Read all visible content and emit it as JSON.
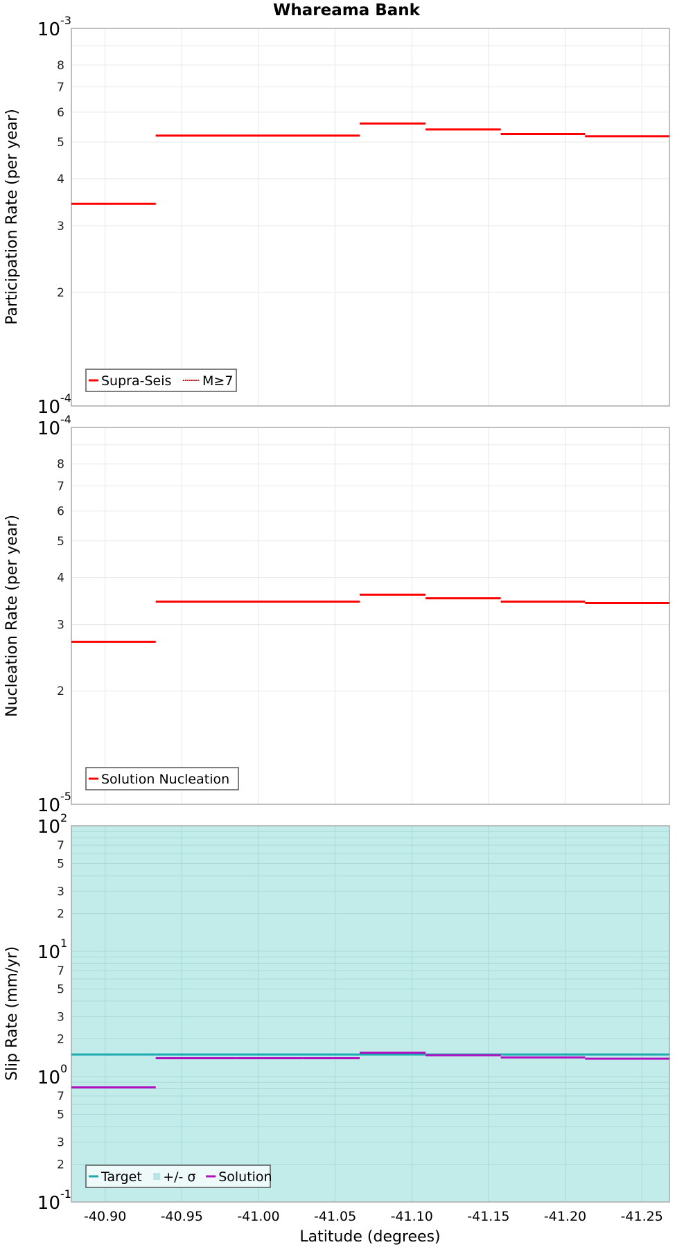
{
  "title": "Whareama Bank",
  "xlabel": "Latitude (degrees)",
  "x_ticks": [
    "-40.90",
    "-40.95",
    "-41.00",
    "-41.05",
    "-41.10",
    "-41.15",
    "-41.20",
    "-41.25"
  ],
  "panels": [
    {
      "ylabel": "Participation Rate (per year)",
      "y_top_label": "10",
      "y_top_exp": "-3",
      "y_bottom_label": "10",
      "y_bottom_exp": "-4",
      "minor_labels": [
        "8",
        "7",
        "6",
        "5",
        "4",
        "3",
        "2"
      ],
      "legend": [
        {
          "label": "Supra-Seis",
          "style": "solid"
        },
        {
          "label": "M≥7",
          "style": "dotted"
        }
      ]
    },
    {
      "ylabel": "Nucleation Rate (per year)",
      "y_top_label": "10",
      "y_top_exp": "-4",
      "y_bottom_label": "10",
      "y_bottom_exp": "-5",
      "minor_labels": [
        "8",
        "7",
        "6",
        "5",
        "4",
        "3",
        "2"
      ],
      "legend": [
        {
          "label": "Solution Nucleation",
          "style": "solid"
        }
      ]
    },
    {
      "ylabel": "Slip Rate (mm/yr)",
      "decade_labels": [
        {
          "base": "10",
          "exp": "2"
        },
        {
          "base": "10",
          "exp": "1"
        },
        {
          "base": "10",
          "exp": "0"
        },
        {
          "base": "10",
          "exp": "-1"
        }
      ],
      "minor_labels": [
        "7",
        "5",
        "3",
        "2"
      ],
      "legend": [
        {
          "label": "Target",
          "style": "solid"
        },
        {
          "label": "+/- σ",
          "style": "box"
        },
        {
          "label": "Solution",
          "style": "solid"
        }
      ]
    }
  ],
  "colors": {
    "red": "#ff0000",
    "target": "#1aabb0",
    "sigma_fill": "#c2ecea",
    "solution": "#b010c0",
    "grid": "#e8e8e8",
    "axis": "#aaaaaa"
  },
  "chart_data": [
    {
      "type": "line",
      "title": "Whareama Bank",
      "xlabel": "Latitude (degrees)",
      "ylabel": "Participation Rate (per year)",
      "yscale": "log",
      "ylim": [
        0.0001,
        0.001
      ],
      "xlim": [
        -40.878,
        -41.268
      ],
      "grid": true,
      "legend_position": "lower left",
      "segments_lat": [
        [
          -40.878,
          -40.933
        ],
        [
          -40.933,
          -40.985
        ],
        [
          -40.985,
          -41.029
        ],
        [
          -41.029,
          -41.066
        ],
        [
          -41.066,
          -41.109
        ],
        [
          -41.109,
          -41.158
        ],
        [
          -41.158,
          -41.213
        ],
        [
          -41.213,
          -41.268
        ]
      ],
      "series": [
        {
          "name": "Supra-Seis",
          "values": [
            0.000343,
            0.00052,
            0.00052,
            0.00052,
            0.00056,
            0.00054,
            0.000525,
            0.000518
          ]
        },
        {
          "name": "M≥7",
          "values": [
            0.000343,
            0.00052,
            0.00052,
            0.00052,
            0.00056,
            0.00054,
            0.000525,
            0.000518
          ]
        }
      ]
    },
    {
      "type": "line",
      "xlabel": "Latitude (degrees)",
      "ylabel": "Nucleation Rate (per year)",
      "yscale": "log",
      "ylim": [
        1e-05,
        0.0001
      ],
      "xlim": [
        -40.878,
        -41.268
      ],
      "grid": true,
      "legend_position": "lower left",
      "segments_lat": [
        [
          -40.878,
          -40.933
        ],
        [
          -40.933,
          -40.985
        ],
        [
          -40.985,
          -41.029
        ],
        [
          -41.029,
          -41.066
        ],
        [
          -41.066,
          -41.109
        ],
        [
          -41.109,
          -41.158
        ],
        [
          -41.158,
          -41.213
        ],
        [
          -41.213,
          -41.268
        ]
      ],
      "series": [
        {
          "name": "Solution Nucleation",
          "values": [
            2.7e-05,
            3.45e-05,
            3.45e-05,
            3.45e-05,
            3.6e-05,
            3.52e-05,
            3.45e-05,
            3.42e-05
          ]
        }
      ]
    },
    {
      "type": "line",
      "xlabel": "Latitude (degrees)",
      "ylabel": "Slip Rate (mm/yr)",
      "yscale": "log",
      "ylim": [
        0.1,
        100
      ],
      "xlim": [
        -40.878,
        -41.268
      ],
      "grid": true,
      "legend_position": "lower left",
      "segments_lat": [
        [
          -40.878,
          -40.933
        ],
        [
          -40.933,
          -40.985
        ],
        [
          -40.985,
          -41.029
        ],
        [
          -41.029,
          -41.066
        ],
        [
          -41.066,
          -41.109
        ],
        [
          -41.109,
          -41.158
        ],
        [
          -41.158,
          -41.213
        ],
        [
          -41.213,
          -41.268
        ]
      ],
      "series": [
        {
          "name": "Target",
          "values": [
            1.5,
            1.5,
            1.5,
            1.5,
            1.5,
            1.5,
            1.5,
            1.5
          ]
        },
        {
          "name": "+/- σ",
          "range": [
            0.1,
            100
          ]
        },
        {
          "name": "Solution",
          "values": [
            0.82,
            1.4,
            1.4,
            1.4,
            1.55,
            1.48,
            1.42,
            1.39
          ]
        }
      ]
    }
  ]
}
